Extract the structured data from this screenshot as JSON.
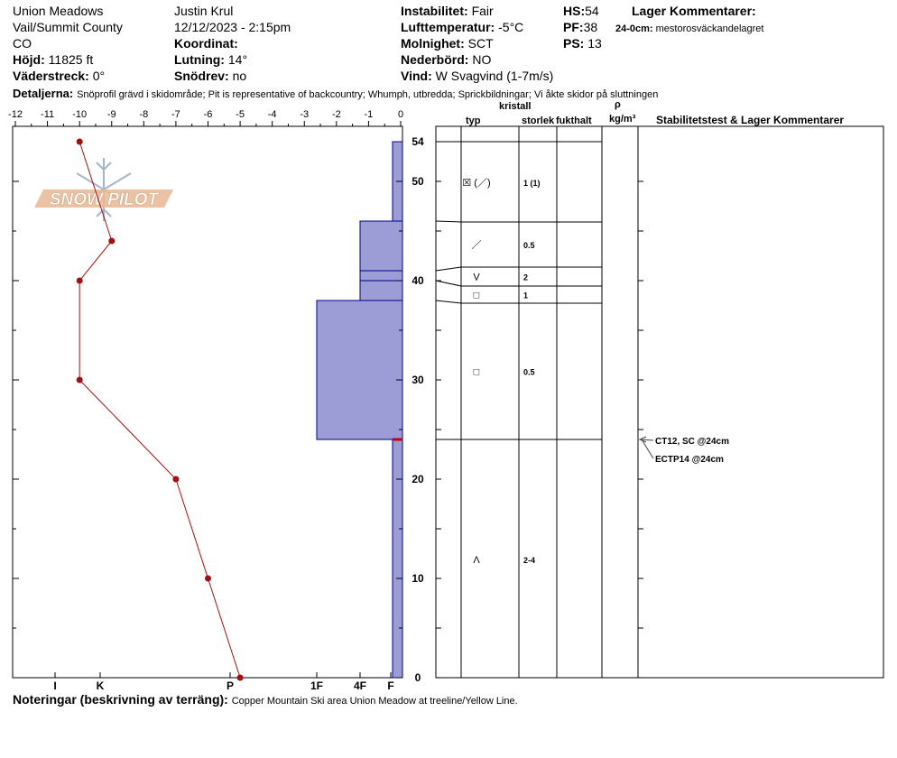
{
  "header": {
    "location": "Union Meadows",
    "county": "Vail/Summit County",
    "state": "CO",
    "elevation_label": "Höjd:",
    "elevation_value": "11825 ft",
    "aspect_label": "Väderstreck:",
    "aspect_value": "0°",
    "observer": "Justin Krul",
    "datetime": "12/12/2023 - 2:15pm",
    "coord_label": "Koordinat:",
    "coord_value": "",
    "slope_label": "Lutning:",
    "slope_value": "14°",
    "drift_label": "Snödrev:",
    "drift_value": "no",
    "stability_label": "Instabilitet:",
    "stability_value": "Fair",
    "airtemp_label": "Lufttemperatur:",
    "airtemp_value": "-5°C",
    "sky_label": "Molnighet:",
    "sky_value": "SCT",
    "precip_label": "Nederbörd:",
    "precip_value": "NO",
    "wind_label": "Vind:",
    "wind_value": "W Svagvind (1-7m/s)",
    "hs_label": "HS:",
    "hs_value": "54",
    "pf_label": "PF:",
    "pf_value": "38",
    "ps_label": "PS:",
    "ps_value": "13",
    "layer_comments_label": "Lager Kommentarer:",
    "layer_comment_range": "24-0cm:",
    "layer_comment_text": "mestorosväckandelagret",
    "details_label": "Detaljerna:",
    "details_text": "Snöprofil grävd i skidområde;  Pit is representative of backcountry;  Whumph, utbredda;  Sprickbildningar;  Vi åkte skidor på sluttningen"
  },
  "logo_text": "SNOW PILOT",
  "footer": {
    "notes_label": "Noteringar (beskrivning av terräng):",
    "notes_text": "Copper Mountain Ski area Union Meadow at treeline/Yellow Line."
  },
  "table_headers": {
    "type": "typ",
    "crystal": "kristall",
    "size": "storlek",
    "moisture": "fukthalt",
    "rho": "ρ",
    "density_unit": "kg/m³",
    "tests": "Stabilitetstest & Lager Kommentarer"
  },
  "colors": {
    "hardness_fill": "#9c9cd6",
    "hardness_edge": "#00008b",
    "temp_line": "#a01010",
    "weak_layer": "#cc0000"
  },
  "chart_data": {
    "type": "line",
    "temperature_axis": {
      "label_ticks": [
        -12,
        -11,
        -10,
        -9,
        -8,
        -7,
        -6,
        -5,
        -4,
        -3,
        -2,
        -1,
        0
      ],
      "range": [
        -12,
        0
      ]
    },
    "depth_axis": {
      "range": [
        0,
        54
      ],
      "ticks": [
        0,
        10,
        20,
        30,
        40,
        50,
        54
      ]
    },
    "temperature_profile": [
      {
        "depth": 54,
        "temp": -10
      },
      {
        "depth": 44,
        "temp": -9
      },
      {
        "depth": 40,
        "temp": -10
      },
      {
        "depth": 30,
        "temp": -10
      },
      {
        "depth": 20,
        "temp": -7
      },
      {
        "depth": 10,
        "temp": -6
      },
      {
        "depth": 0,
        "temp": -5
      }
    ],
    "hardness_scale": [
      "I",
      "K",
      "P",
      "1F",
      "4F",
      "F"
    ],
    "hardness_layers": [
      {
        "top": 54,
        "bottom": 46,
        "hardness": "F"
      },
      {
        "top": 46,
        "bottom": 38,
        "hardness": "4F"
      },
      {
        "top": 38,
        "bottom": 24,
        "hardness": "1F"
      },
      {
        "top": 24,
        "bottom": 0,
        "hardness": "F"
      }
    ],
    "layer_boundaries": [
      54,
      46,
      41,
      40,
      38,
      24,
      0
    ],
    "layers": [
      {
        "top": 54,
        "bottom": 46,
        "type": "☒ (／)",
        "size": "1 (1)"
      },
      {
        "top": 46,
        "bottom": 41,
        "type": "／",
        "size": "0.5"
      },
      {
        "top": 41,
        "bottom": 40,
        "type": "V",
        "size": "2"
      },
      {
        "top": 40,
        "bottom": 38,
        "type": "□",
        "size": "1"
      },
      {
        "top": 38,
        "bottom": 24,
        "type": "□",
        "size": "0.5"
      },
      {
        "top": 24,
        "bottom": 0,
        "type": "Λ",
        "size": "2-4"
      }
    ],
    "weak_layer_depth": 24,
    "tests": [
      {
        "depth": 24,
        "label": "CT12, SC @24cm"
      },
      {
        "depth": 24,
        "label": "ECTP14 @24cm"
      }
    ]
  }
}
